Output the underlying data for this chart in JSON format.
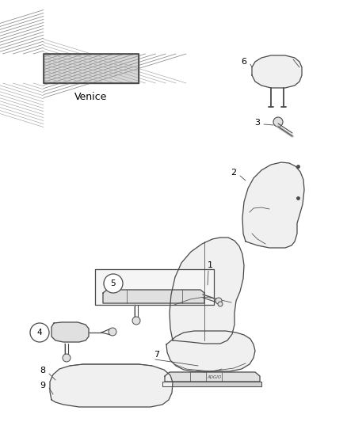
{
  "background": "#ffffff",
  "line_color": "#4a4a4a",
  "fill_light": "#f0f0f0",
  "fill_mid": "#e0e0e0",
  "fill_dark": "#d0d0d0",
  "venice_text": "Venice",
  "lw": 0.9
}
